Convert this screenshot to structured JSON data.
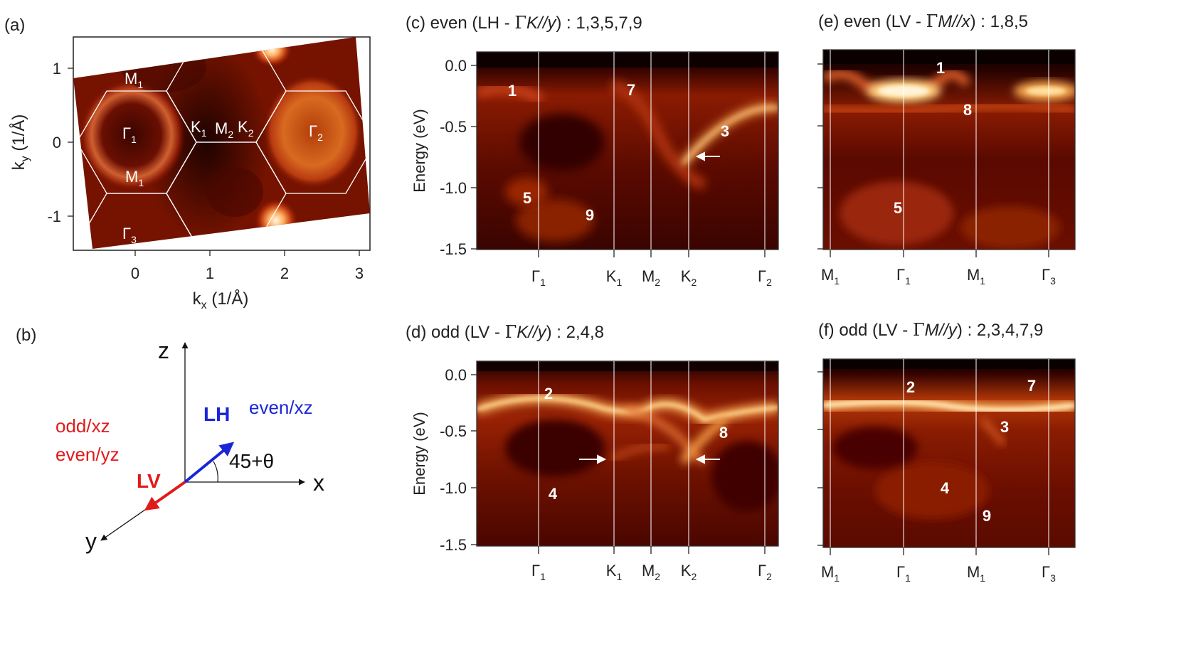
{
  "colors": {
    "bg_dark": "#2a0200",
    "band_hot": "#fff4c8",
    "lh_arrow": "#1a25d8",
    "lv_arrow": "#e11a1a",
    "label_red": "#e11a1a",
    "label_blue": "#1a25d8"
  },
  "panel_a": {
    "label": "(a)",
    "xlabel": "k",
    "xlabel_sub": "x",
    "xlabel_unit": " (1/Å)",
    "ylabel": "k",
    "ylabel_sub": "y",
    "ylabel_unit": " (1/Å)",
    "xticks": [
      "0",
      "1",
      "2",
      "3"
    ],
    "yticks": [
      "1",
      "0",
      "-1"
    ],
    "points": [
      {
        "name": "M",
        "sub": "1"
      },
      {
        "name": "Γ",
        "sub": "1"
      },
      {
        "name": "K",
        "sub": "1"
      },
      {
        "name": "M",
        "sub": "2"
      },
      {
        "name": "K",
        "sub": "2"
      },
      {
        "name": "Γ",
        "sub": "2"
      },
      {
        "name": "M",
        "sub": "1"
      },
      {
        "name": "Γ",
        "sub": "3"
      }
    ]
  },
  "panel_b": {
    "label": "(b)",
    "axis_z": "z",
    "axis_x": "x",
    "axis_y": "y",
    "lh": "LH",
    "lv": "LV",
    "even_xz": "even/xz",
    "odd_xz": "odd/xz",
    "even_yz": "even/yz",
    "angle": "45+θ"
  },
  "panels": [
    {
      "id": "c",
      "title_prefix": "(c) even (LH - ",
      "title_greek": "Γ",
      "title_dir": "K//y",
      "title_suffix": ") : 1,3,5,7,9",
      "ylabel": "Energy (eV)",
      "yticks": [
        "0.0",
        "-0.5",
        "-1.0",
        "-1.5"
      ],
      "xticks": [
        {
          "name": "Γ",
          "sub": "1"
        },
        {
          "name": "K",
          "sub": "1"
        },
        {
          "name": "M",
          "sub": "2"
        },
        {
          "name": "K",
          "sub": "2"
        },
        {
          "name": "Γ",
          "sub": "2"
        }
      ],
      "band_labels": [
        "1",
        "7",
        "3",
        "5",
        "9"
      ]
    },
    {
      "id": "d",
      "title_prefix": "(d) odd (LV - ",
      "title_greek": "Γ",
      "title_dir": "K//y",
      "title_suffix": ") : 2,4,8",
      "ylabel": "Energy (eV)",
      "yticks": [
        "0.0",
        "-0.5",
        "-1.0",
        "-1.5"
      ],
      "xticks": [
        {
          "name": "Γ",
          "sub": "1"
        },
        {
          "name": "K",
          "sub": "1"
        },
        {
          "name": "M",
          "sub": "2"
        },
        {
          "name": "K",
          "sub": "2"
        },
        {
          "name": "Γ",
          "sub": "2"
        }
      ],
      "band_labels": [
        "2",
        "8",
        "4"
      ]
    },
    {
      "id": "e",
      "title_prefix": "(e) even (LV - ",
      "title_greek": "Γ",
      "title_dir": "M//x",
      "title_suffix": ") : 1,8,5",
      "yticks": [
        "",
        "",
        "",
        ""
      ],
      "xticks": [
        {
          "name": "M",
          "sub": "1"
        },
        {
          "name": "Γ",
          "sub": "1"
        },
        {
          "name": "M",
          "sub": "1"
        },
        {
          "name": "Γ",
          "sub": "3"
        }
      ],
      "band_labels": [
        "1",
        "8",
        "5"
      ]
    },
    {
      "id": "f",
      "title_prefix": "(f) odd (LV - ",
      "title_greek": "Γ",
      "title_dir": "M//y",
      "title_suffix": ") : 2,3,4,7,9",
      "yticks": [
        "",
        "",
        "",
        ""
      ],
      "xticks": [
        {
          "name": "M",
          "sub": "1"
        },
        {
          "name": "Γ",
          "sub": "1"
        },
        {
          "name": "M",
          "sub": "1"
        },
        {
          "name": "Γ",
          "sub": "3"
        }
      ],
      "band_labels": [
        "2",
        "7",
        "3",
        "4",
        "9"
      ]
    }
  ]
}
